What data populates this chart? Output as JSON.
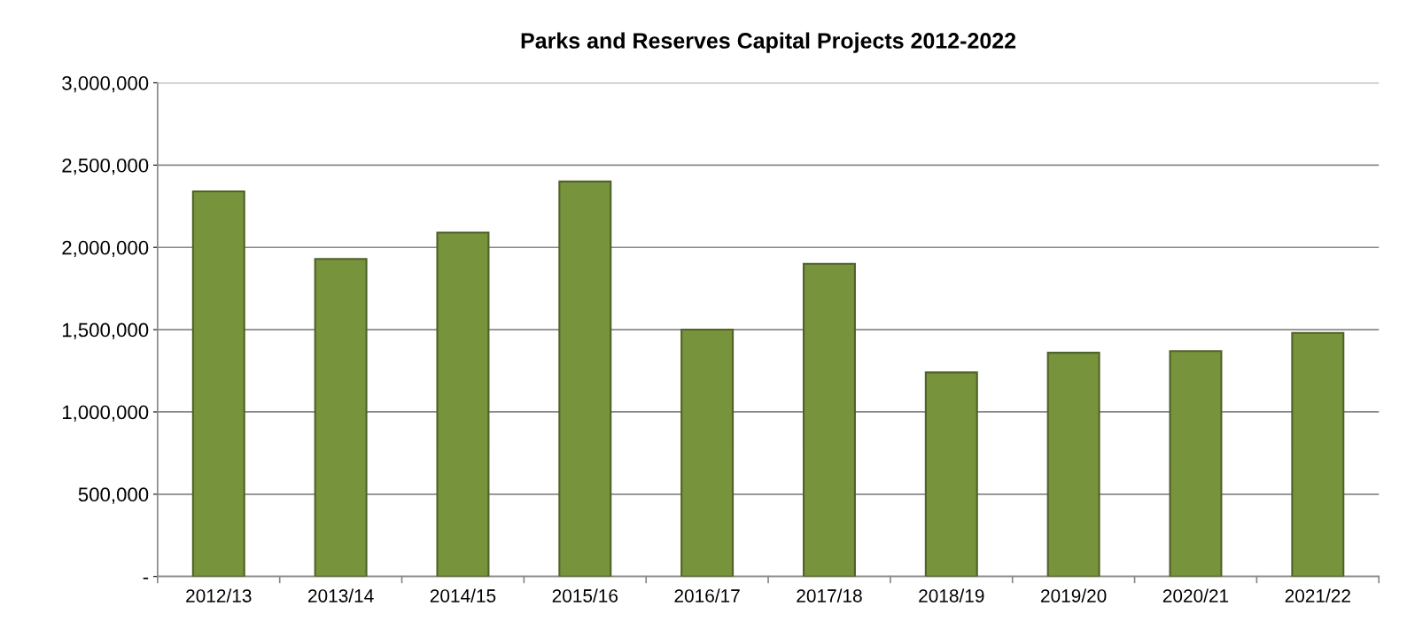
{
  "chart_data": {
    "type": "bar",
    "title": "Parks and Reserves Capital Projects 2012-2022",
    "categories": [
      "2012/13",
      "2013/14",
      "2014/15",
      "2015/16",
      "2016/17",
      "2017/18",
      "2018/19",
      "2019/20",
      "2020/21",
      "2021/22"
    ],
    "values": [
      2340000,
      1930000,
      2090000,
      2400000,
      1500000,
      1900000,
      1240000,
      1360000,
      1370000,
      1480000
    ],
    "color": "#77933c",
    "ylim": [
      0,
      3000000
    ],
    "yticks": [
      {
        "value": 0,
        "label": "-"
      },
      {
        "value": 500000,
        "label": "500,000"
      },
      {
        "value": 1000000,
        "label": "1,000,000"
      },
      {
        "value": 1500000,
        "label": "1,500,000"
      },
      {
        "value": 2000000,
        "label": "2,000,000"
      },
      {
        "value": 2500000,
        "label": "2,500,000"
      },
      {
        "value": 3000000,
        "label": "3,000,000"
      }
    ],
    "grid": "y"
  }
}
